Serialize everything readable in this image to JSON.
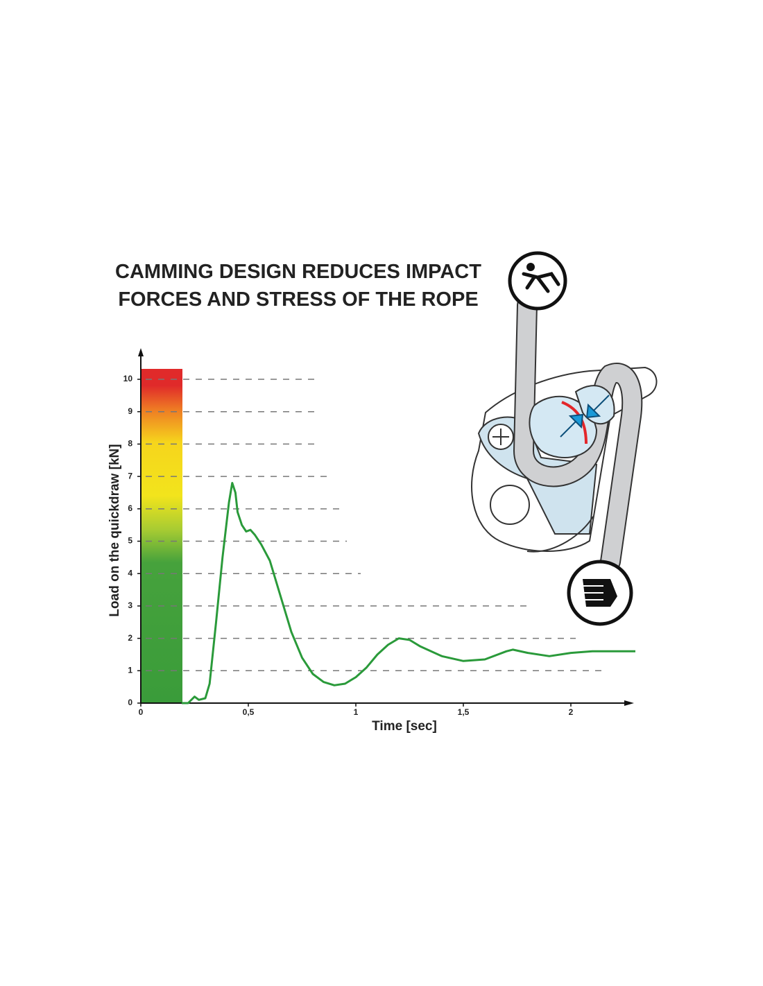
{
  "chart_data": {
    "type": "line",
    "title": "CAMMING DESIGN REDUCES IMPACT FORCES AND STRESS OF THE ROPE",
    "x_label": "Time [sec]",
    "y_label": "Load on the quickdraw [kN]",
    "color": "#2a9a3a",
    "x": [
      0.19,
      0.22,
      0.25,
      0.27,
      0.3,
      0.32,
      0.35,
      0.38,
      0.41,
      0.425,
      0.44,
      0.45,
      0.47,
      0.49,
      0.51,
      0.53,
      0.56,
      0.6,
      0.65,
      0.7,
      0.75,
      0.8,
      0.85,
      0.9,
      0.95,
      1.0,
      1.05,
      1.1,
      1.15,
      1.2,
      1.25,
      1.3,
      1.4,
      1.5,
      1.6,
      1.7,
      1.73,
      1.8,
      1.9,
      2.0,
      2.1,
      2.3
    ],
    "values": [
      0,
      0,
      0.2,
      0.1,
      0.15,
      0.6,
      2.5,
      4.5,
      6.2,
      6.8,
      6.5,
      5.9,
      5.5,
      5.3,
      5.35,
      5.2,
      4.9,
      4.4,
      3.3,
      2.2,
      1.4,
      0.9,
      0.65,
      0.55,
      0.6,
      0.8,
      1.1,
      1.5,
      1.8,
      2.0,
      1.95,
      1.75,
      1.45,
      1.3,
      1.35,
      1.6,
      1.65,
      1.55,
      1.45,
      1.55,
      1.6,
      1.6
    ],
    "xlim": [
      0,
      2.3
    ],
    "ylim": [
      0,
      10.9
    ],
    "xticks": [
      0,
      {
        "value": 0.5,
        "label": "0,5"
      },
      1,
      {
        "value": 1.5,
        "label": "1,5"
      },
      2
    ],
    "yticks": [
      0,
      1,
      2,
      3,
      4,
      5,
      6,
      7,
      8,
      9,
      10
    ],
    "grid": true
  }
}
